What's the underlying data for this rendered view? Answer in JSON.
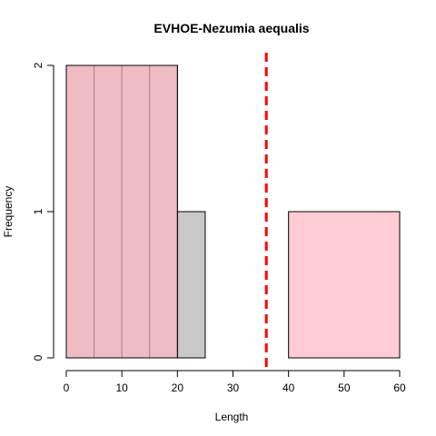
{
  "chart_data": {
    "type": "histogram",
    "title": "EVHOE-Nezumia aequalis",
    "xlabel": "Length",
    "ylabel": "Frequency",
    "xlim": [
      0,
      60
    ],
    "ylim": [
      0,
      2
    ],
    "x_ticks": [
      0,
      10,
      20,
      30,
      40,
      50,
      60
    ],
    "y_ticks": [
      0,
      1,
      2
    ],
    "series": [
      {
        "name": "histogram-gray",
        "color": "#c8c8c8",
        "bins": [
          {
            "x0": 0,
            "x1": 5,
            "count": 2
          },
          {
            "x0": 5,
            "x1": 10,
            "count": 2
          },
          {
            "x0": 10,
            "x1": 15,
            "count": 2
          },
          {
            "x0": 15,
            "x1": 20,
            "count": 2
          },
          {
            "x0": 20,
            "x1": 25,
            "count": 1
          }
        ]
      },
      {
        "name": "histogram-pink",
        "color": "rgba(255,182,193,0.7)",
        "bins": [
          {
            "x0": 0,
            "x1": 20,
            "count": 2
          },
          {
            "x0": 40,
            "x1": 60,
            "count": 1
          }
        ]
      }
    ],
    "reference_line": {
      "x": 36,
      "color": "#ff0000",
      "style": "dashed"
    }
  }
}
